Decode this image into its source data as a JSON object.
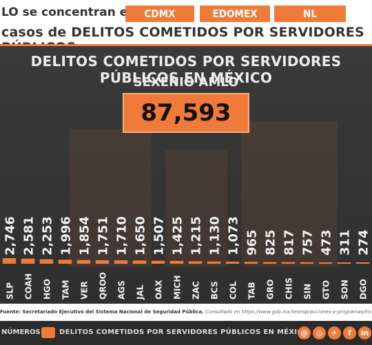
{
  "header": {
    "line1": "LO se concentran en",
    "line2": "casos de DELITOS COMETIDOS POR SERVIDORES PÚBLICOS",
    "pills": [
      "CDMX",
      "EDOMEX",
      "NL"
    ]
  },
  "panel": {
    "title": "DELITOS COMETIDOS POR SERVIDORES PÚBLICOS EN MÉXICO",
    "subtitle": "SEXENIO AMLO",
    "total": "87,593"
  },
  "colors": {
    "accent": "#f07a3a",
    "panel": "#333333",
    "text": "#ececec"
  },
  "chart_data": {
    "type": "bar",
    "categories": [
      "SLP",
      "COAH",
      "HGO",
      "TAM",
      "VER",
      "QROO",
      "AGS",
      "JAL",
      "OAX",
      "MICH",
      "ZAC",
      "BCS",
      "COL",
      "TAB",
      "GRO",
      "CHIS",
      "SIN",
      "GTO",
      "SON",
      "DGO"
    ],
    "values": [
      2746,
      2581,
      2253,
      1996,
      1854,
      1751,
      1710,
      1650,
      1507,
      1425,
      1215,
      1130,
      1073,
      965,
      825,
      817,
      757,
      473,
      311,
      274
    ],
    "value_labels": [
      "2,746",
      "2,581",
      "2,253",
      "1,996",
      "1,854",
      "1,751",
      "1,710",
      "1,650",
      "1,507",
      "1,425",
      "1,215",
      "1,130",
      "1,073",
      "965",
      "825",
      "817",
      "757",
      "473",
      "311",
      "274"
    ]
  },
  "footer": {
    "source_label": "Fuente: Secretariado Ejecutivo del Sistema Nacional de Seguridad Pública.",
    "source_rest": "Consultado en https://www.gob.mx/sesnsp/acciones-y-programas/incidencia-delictiva",
    "brand_left": "NÚMEROS",
    "brand_mid": "DELITOS COMETIDOS POR SERVIDORES PÚBLICOS EN MÉXICO",
    "social": [
      "@",
      "◎",
      "✈",
      "f",
      "in"
    ]
  }
}
